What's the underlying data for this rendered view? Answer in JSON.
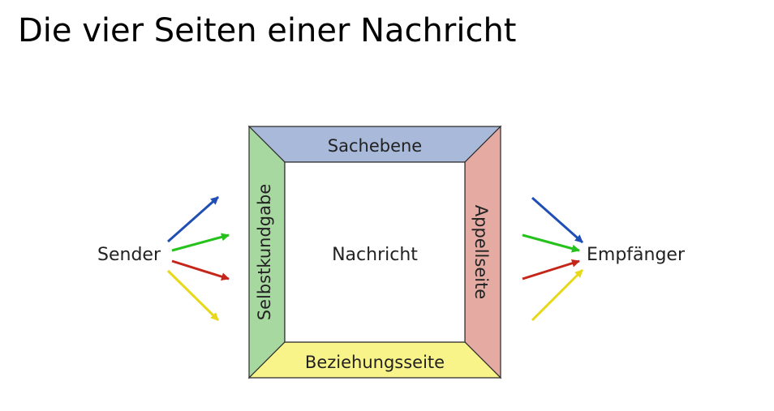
{
  "title": "Die vier Seiten einer Nachricht",
  "diagram": {
    "sender": "Sender",
    "receiver": "Empfänger",
    "center": "Nachricht",
    "sides": {
      "top": "Sachebene",
      "left": "Selbstkundgabe",
      "right": "Appellseite",
      "bottom": "Beziehungsseite"
    }
  },
  "colors": {
    "top": "#a9b9d9",
    "left": "#a6d8a0",
    "right": "#e5aaa2",
    "bottom": "#f8f48a",
    "outline": "#2b2b2b",
    "arrow_blue": "#1f4fb4",
    "arrow_green": "#26c21c",
    "arrow_red": "#c4261a",
    "arrow_yellow": "#e8d81a"
  },
  "arrows": {
    "sender_side": [
      "blue",
      "green",
      "red",
      "yellow"
    ],
    "receiver_side": [
      "blue",
      "green",
      "red",
      "yellow"
    ]
  }
}
